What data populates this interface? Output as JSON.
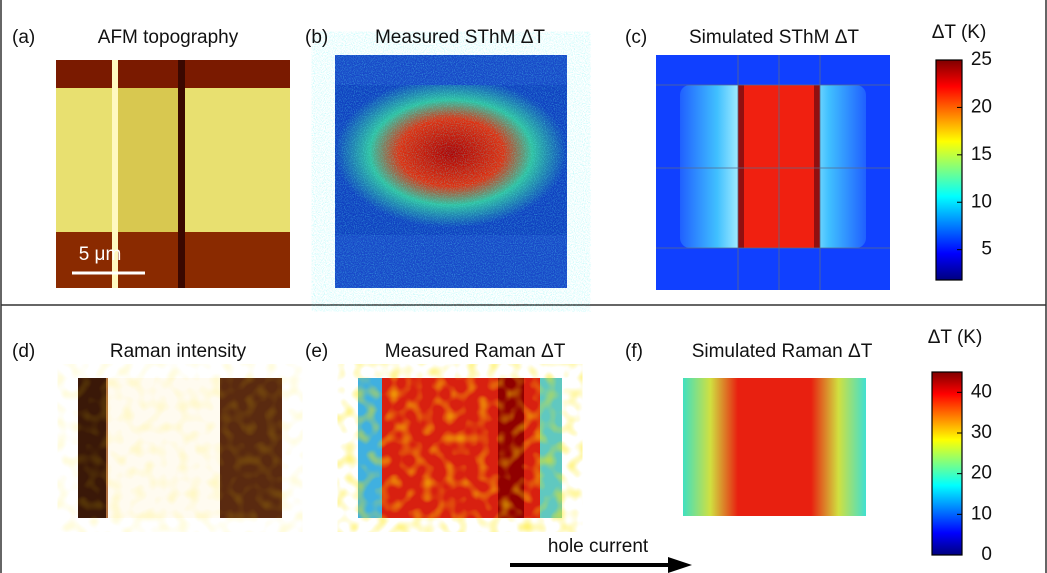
{
  "panels": [
    {
      "label": "(a)",
      "title": "AFM topography"
    },
    {
      "label": "(b)",
      "title": "Measured SThM ΔT"
    },
    {
      "label": "(c)",
      "title": "Simulated SThM ΔT"
    },
    {
      "label": "(d)",
      "title": "Raman intensity"
    },
    {
      "label": "(e)",
      "title": "Measured Raman ΔT"
    },
    {
      "label": "(f)",
      "title": "Simulated Raman ΔT"
    }
  ],
  "scale_bar": "5 μm",
  "colorbars": [
    {
      "title": "ΔT (K)",
      "lim": [
        1.8,
        25
      ],
      "ticks": [
        5,
        10,
        15,
        20,
        25
      ]
    },
    {
      "title": "ΔT (K)",
      "lim": [
        0,
        45
      ],
      "ticks": [
        0,
        10,
        20,
        30,
        40
      ]
    }
  ],
  "arrow_label": "hole current"
}
